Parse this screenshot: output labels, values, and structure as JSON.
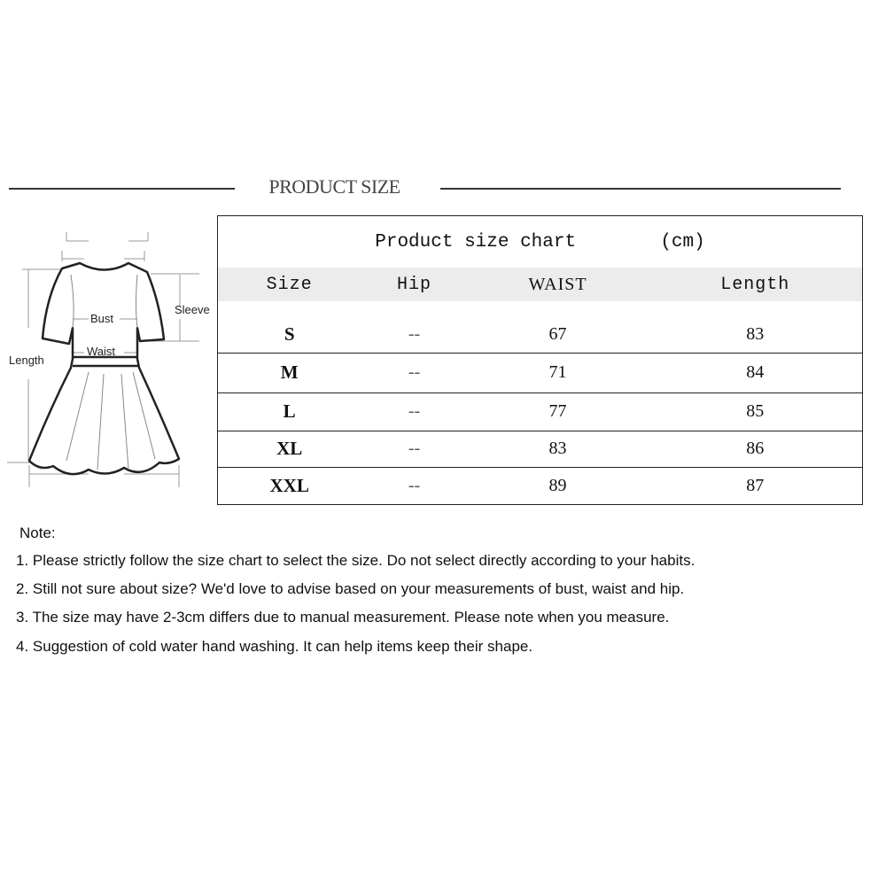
{
  "heading": "PRODUCT SIZE",
  "diagram": {
    "labels": {
      "bust": "Bust",
      "waist": "Waist",
      "sleeve": "Sleeve",
      "length": "Length"
    }
  },
  "table": {
    "title": "Product size chart",
    "unit": "(cm)",
    "columns": [
      "Size",
      "Hip",
      "WAIST",
      "Length"
    ],
    "rows": [
      {
        "size": "S",
        "hip": "--",
        "waist": "67",
        "length": "83"
      },
      {
        "size": "M",
        "hip": "--",
        "waist": "71",
        "length": "84"
      },
      {
        "size": "L",
        "hip": "--",
        "waist": "77",
        "length": "85"
      },
      {
        "size": "XL",
        "hip": "--",
        "waist": "83",
        "length": "86"
      },
      {
        "size": "XXL",
        "hip": "--",
        "waist": "89",
        "length": "87"
      }
    ]
  },
  "notes": {
    "title": "Note:",
    "items": [
      "1. Please strictly follow the size chart to select the size. Do not select directly according to your habits.",
      "2. Still not sure about size? We'd love to advise based on your measurements of bust, waist and hip.",
      "3. The size may have 2-3cm differs due to manual measurement. Please note when you measure.",
      "4. Suggestion of cold water hand washing. It can help items keep their shape."
    ]
  }
}
